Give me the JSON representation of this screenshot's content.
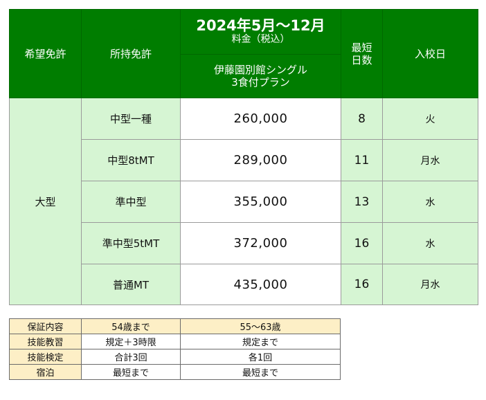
{
  "main_table": {
    "headers": {
      "desired_license": "希望免許",
      "held_license": "所持免許",
      "period": "2024年5月～12月",
      "fee_label": "料金（税込）",
      "plan_line1": "伊藤園別館シングル",
      "plan_line2": "3食付プラン",
      "shortest_days_line1": "最短",
      "shortest_days_line2": "日数",
      "entry_day": "入校日"
    },
    "desired_value": "大型",
    "rows": [
      {
        "held": "中型一種",
        "price": "260,000",
        "days": "8",
        "entry": "火"
      },
      {
        "held": "中型8tMT",
        "price": "289,000",
        "days": "11",
        "entry": "月水"
      },
      {
        "held": "準中型",
        "price": "355,000",
        "days": "13",
        "entry": "水"
      },
      {
        "held": "準中型5tMT",
        "price": "372,000",
        "days": "16",
        "entry": "水"
      },
      {
        "held": "普通MT",
        "price": "435,000",
        "days": "16",
        "entry": "月水"
      }
    ]
  },
  "guarantee_table": {
    "header": [
      "保証内容",
      "54歳まで",
      "55～63歳"
    ],
    "rows": [
      [
        "技能教習",
        "規定＋3時限",
        "規定まで"
      ],
      [
        "技能検定",
        "合計3回",
        "各1回"
      ],
      [
        "宿泊",
        "最短まで",
        "最短まで"
      ]
    ]
  },
  "colors": {
    "header_green": "#007d00",
    "light_green": "#d6f5d3",
    "cream": "#fdefc6"
  }
}
